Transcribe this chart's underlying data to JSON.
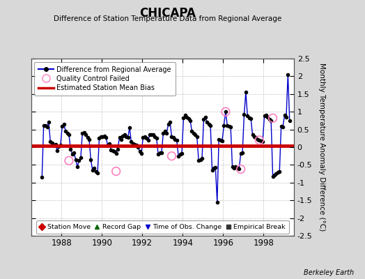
{
  "title": "CHICAPA",
  "subtitle": "Difference of Station Temperature Data from Regional Average",
  "ylabel": "Monthly Temperature Anomaly Difference (°C)",
  "credit": "Berkeley Earth",
  "ylim": [
    -2.5,
    2.5
  ],
  "xlim": [
    1986.5,
    1999.5
  ],
  "bias_value": 0.04,
  "line_color": "#0000cc",
  "bias_color": "#cc0000",
  "background_color": "#d8d8d8",
  "plot_bg_color": "#ffffff",
  "grid_color": "#aaaaaa",
  "x_ticks": [
    1988,
    1990,
    1992,
    1994,
    1996,
    1998
  ],
  "y_ticks": [
    -2.5,
    -2,
    -1.5,
    -1,
    -0.5,
    0,
    0.5,
    1,
    1.5,
    2,
    2.5
  ],
  "time_series": [
    1987.042,
    1987.125,
    1987.208,
    1987.292,
    1987.375,
    1987.458,
    1987.542,
    1987.625,
    1987.708,
    1987.792,
    1987.875,
    1987.958,
    1988.042,
    1988.125,
    1988.208,
    1988.292,
    1988.375,
    1988.458,
    1988.542,
    1988.625,
    1988.708,
    1988.792,
    1988.875,
    1988.958,
    1989.042,
    1989.125,
    1989.208,
    1989.292,
    1989.375,
    1989.458,
    1989.542,
    1989.625,
    1989.708,
    1989.792,
    1989.875,
    1989.958,
    1990.042,
    1990.125,
    1990.208,
    1990.292,
    1990.375,
    1990.458,
    1990.542,
    1990.625,
    1990.708,
    1990.792,
    1990.875,
    1990.958,
    1991.042,
    1991.125,
    1991.208,
    1991.292,
    1991.375,
    1991.458,
    1991.542,
    1991.625,
    1991.708,
    1991.792,
    1991.875,
    1991.958,
    1992.042,
    1992.125,
    1992.208,
    1992.292,
    1992.375,
    1992.458,
    1992.542,
    1992.625,
    1992.708,
    1992.792,
    1992.875,
    1992.958,
    1993.042,
    1993.125,
    1993.208,
    1993.292,
    1993.375,
    1993.458,
    1993.542,
    1993.625,
    1993.708,
    1993.792,
    1993.875,
    1993.958,
    1994.042,
    1994.125,
    1994.208,
    1994.292,
    1994.375,
    1994.458,
    1994.542,
    1994.625,
    1994.708,
    1994.792,
    1994.875,
    1994.958,
    1995.042,
    1995.125,
    1995.208,
    1995.292,
    1995.375,
    1995.458,
    1995.542,
    1995.625,
    1995.708,
    1995.792,
    1995.875,
    1995.958,
    1996.042,
    1996.125,
    1996.208,
    1996.292,
    1996.375,
    1996.458,
    1996.542,
    1996.625,
    1996.708,
    1996.792,
    1996.875,
    1996.958,
    1997.042,
    1997.125,
    1997.208,
    1997.292,
    1997.375,
    1997.458,
    1997.542,
    1997.625,
    1997.708,
    1997.792,
    1997.875,
    1997.958,
    1998.042,
    1998.125,
    1998.208,
    1998.292,
    1998.375,
    1998.458,
    1998.542,
    1998.625,
    1998.708,
    1998.792,
    1998.875,
    1998.958,
    1999.042,
    1999.125,
    1999.208,
    1999.292
  ],
  "values": [
    -0.85,
    0.62,
    0.62,
    0.58,
    0.7,
    0.15,
    0.12,
    0.05,
    0.08,
    -0.1,
    0.02,
    0.05,
    0.6,
    0.65,
    0.45,
    0.4,
    0.35,
    -0.05,
    -0.2,
    -0.15,
    -0.35,
    -0.55,
    -0.38,
    -0.3,
    0.4,
    0.42,
    0.35,
    0.28,
    0.22,
    -0.35,
    -0.65,
    -0.6,
    -0.68,
    -0.72,
    0.25,
    0.3,
    0.3,
    0.32,
    0.28,
    0.05,
    0.1,
    -0.08,
    -0.1,
    -0.12,
    -0.18,
    -0.05,
    0.28,
    0.22,
    0.32,
    0.35,
    0.3,
    0.28,
    0.55,
    0.15,
    0.1,
    0.08,
    0.05,
    0.0,
    -0.12,
    -0.18,
    0.28,
    0.3,
    0.25,
    0.2,
    0.35,
    0.35,
    0.35,
    0.3,
    0.25,
    -0.2,
    -0.15,
    -0.15,
    0.4,
    0.45,
    0.4,
    0.65,
    0.7,
    0.3,
    0.28,
    0.22,
    0.2,
    -0.25,
    -0.2,
    -0.18,
    0.82,
    0.9,
    0.85,
    0.8,
    0.75,
    0.45,
    0.4,
    0.35,
    0.3,
    -0.38,
    -0.35,
    -0.32,
    0.78,
    0.85,
    0.7,
    0.65,
    0.62,
    -0.65,
    -0.6,
    -0.58,
    -1.55,
    0.22,
    0.2,
    0.18,
    0.62,
    1.0,
    0.62,
    0.6,
    0.58,
    -0.55,
    -0.6,
    -0.55,
    -0.6,
    -0.62,
    -0.18,
    -0.15,
    0.92,
    1.55,
    0.88,
    0.82,
    0.8,
    0.35,
    0.3,
    0.28,
    0.22,
    0.2,
    0.18,
    0.15,
    0.88,
    0.9,
    0.85,
    0.78,
    0.75,
    -0.82,
    -0.78,
    -0.75,
    -0.7,
    -0.68,
    0.6,
    0.58,
    0.9,
    0.85,
    2.05,
    0.75
  ],
  "qc_failed_times": [
    1988.375,
    1990.708,
    1993.458,
    1996.125,
    1996.875,
    1997.792,
    1998.458
  ],
  "qc_failed_values": [
    -0.38,
    -0.68,
    -0.25,
    1.0,
    -0.62,
    0.2,
    0.82
  ]
}
